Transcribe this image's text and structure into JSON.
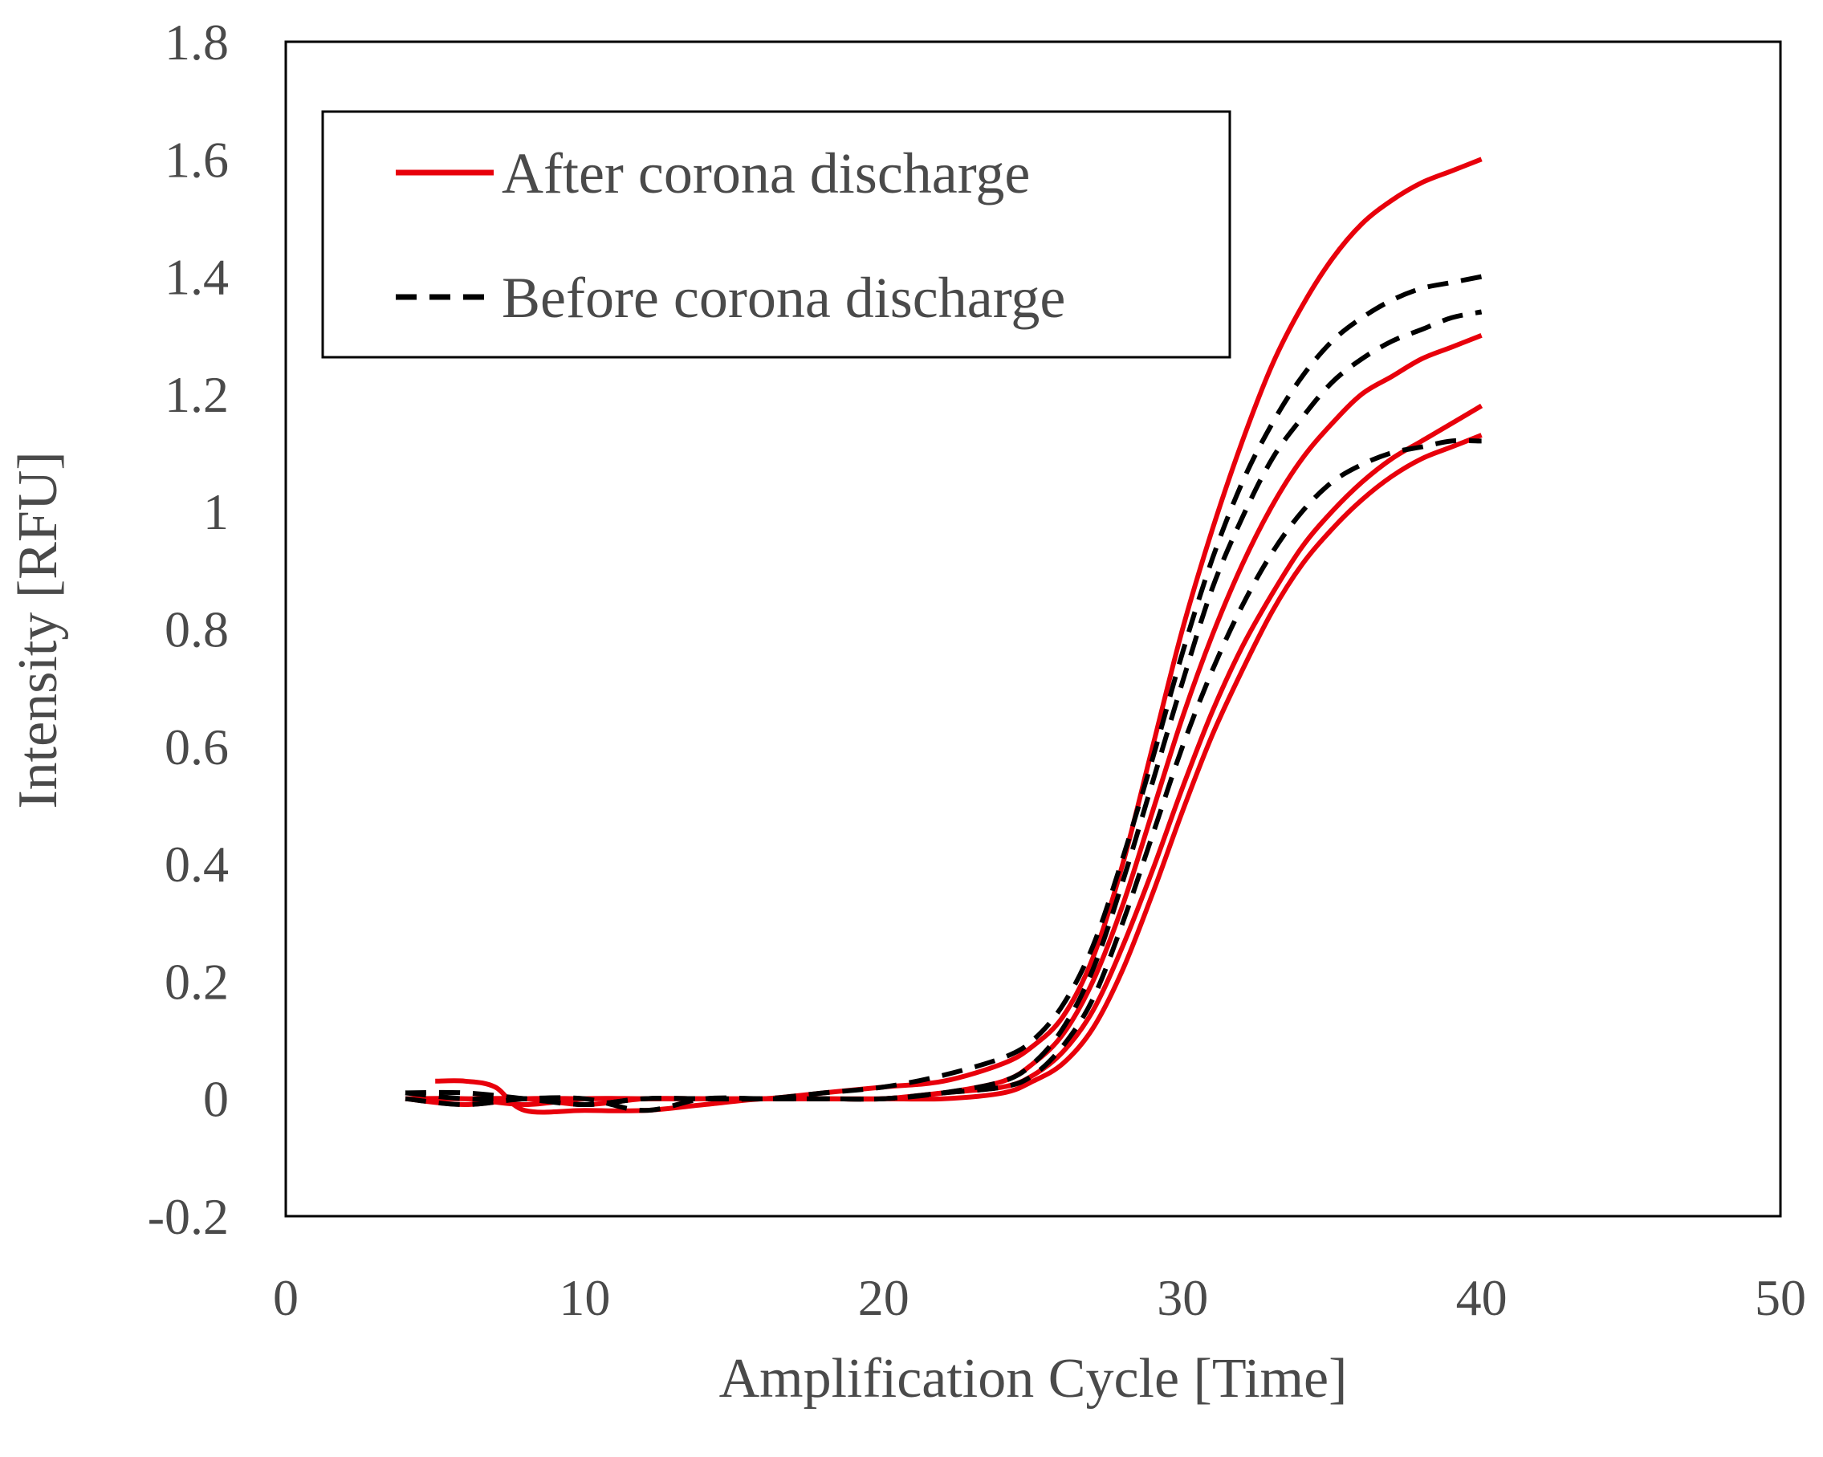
{
  "chart_data": {
    "type": "line",
    "title": "",
    "xlabel": "Amplification Cycle [Time]",
    "ylabel": "Intensity [RFU]",
    "xlim": [
      0,
      50
    ],
    "ylim": [
      -0.2,
      1.8
    ],
    "x_ticks": [
      0,
      10,
      20,
      30,
      40,
      50
    ],
    "y_ticks": [
      -0.2,
      0,
      0.2,
      0.4,
      0.6,
      0.8,
      1,
      1.2,
      1.4,
      1.6,
      1.8
    ],
    "x_tick_labels": [
      "0",
      "10",
      "20",
      "30",
      "40",
      "50"
    ],
    "y_tick_labels": [
      "-0.2",
      "0",
      "0.2",
      "0.4",
      "0.6",
      "0.8",
      "1",
      "1.2",
      "1.4",
      "1.6",
      "1.8"
    ],
    "grid": false,
    "legend_position": "top-left",
    "legend": [
      {
        "label": "After corona discharge",
        "color": "#e8000b",
        "style": "solid"
      },
      {
        "label": "Before corona discharge",
        "color": "#000000",
        "style": "dashed"
      }
    ],
    "series": [
      {
        "name": "After corona discharge",
        "group": "after",
        "color": "#e8000b",
        "style": "solid",
        "x": [
          4,
          6,
          8,
          10,
          12,
          14,
          16,
          18,
          20,
          22,
          24,
          25,
          26,
          27,
          28,
          29,
          30,
          31,
          32,
          33,
          34,
          35,
          36,
          37,
          38,
          39,
          40
        ],
        "y": [
          0.0,
          -0.01,
          0.0,
          0.0,
          0.0,
          0.0,
          0.0,
          0.01,
          0.02,
          0.03,
          0.06,
          0.09,
          0.14,
          0.24,
          0.4,
          0.6,
          0.8,
          0.97,
          1.12,
          1.25,
          1.35,
          1.43,
          1.49,
          1.53,
          1.56,
          1.58,
          1.6
        ]
      },
      {
        "name": "After corona discharge",
        "group": "after",
        "color": "#e8000b",
        "style": "solid",
        "x": [
          4,
          6,
          8,
          10,
          12,
          14,
          16,
          18,
          20,
          22,
          24,
          25,
          26,
          27,
          28,
          29,
          30,
          31,
          32,
          33,
          34,
          35,
          36,
          37,
          38,
          39,
          40
        ],
        "y": [
          0.0,
          0.0,
          -0.01,
          0.0,
          0.0,
          0.0,
          0.0,
          0.0,
          0.0,
          0.01,
          0.03,
          0.06,
          0.11,
          0.2,
          0.33,
          0.49,
          0.65,
          0.79,
          0.91,
          1.01,
          1.09,
          1.15,
          1.2,
          1.23,
          1.26,
          1.28,
          1.3
        ]
      },
      {
        "name": "After corona discharge",
        "group": "after",
        "color": "#e8000b",
        "style": "solid",
        "x": [
          5,
          6,
          7,
          8,
          10,
          12,
          14,
          16,
          18,
          20,
          22,
          24,
          25,
          26,
          27,
          28,
          29,
          30,
          31,
          32,
          33,
          34,
          35,
          36,
          37,
          38,
          39,
          40
        ],
        "y": [
          0.03,
          0.03,
          0.02,
          -0.02,
          -0.02,
          -0.02,
          -0.01,
          0.0,
          0.0,
          0.0,
          0.01,
          0.02,
          0.04,
          0.08,
          0.15,
          0.26,
          0.39,
          0.53,
          0.66,
          0.77,
          0.86,
          0.94,
          1.0,
          1.05,
          1.09,
          1.12,
          1.15,
          1.18
        ]
      },
      {
        "name": "After corona discharge",
        "group": "after",
        "color": "#e8000b",
        "style": "solid",
        "x": [
          4,
          6,
          8,
          10,
          12,
          14,
          16,
          18,
          20,
          22,
          24,
          25,
          26,
          27,
          28,
          29,
          30,
          31,
          32,
          33,
          34,
          35,
          36,
          37,
          38,
          39,
          40
        ],
        "y": [
          0.0,
          0.0,
          0.0,
          -0.01,
          0.0,
          0.0,
          0.0,
          0.0,
          0.0,
          0.0,
          0.01,
          0.03,
          0.06,
          0.12,
          0.22,
          0.35,
          0.49,
          0.62,
          0.73,
          0.83,
          0.91,
          0.97,
          1.02,
          1.06,
          1.09,
          1.11,
          1.13
        ]
      },
      {
        "name": "Before corona discharge",
        "group": "before",
        "color": "#000000",
        "style": "dashed",
        "x": [
          4,
          6,
          8,
          10,
          12,
          14,
          16,
          18,
          20,
          22,
          24,
          25,
          26,
          27,
          28,
          29,
          30,
          31,
          32,
          33,
          34,
          35,
          36,
          37,
          38,
          39,
          40
        ],
        "y": [
          0.01,
          0.01,
          0.0,
          -0.01,
          0.0,
          0.0,
          0.0,
          0.01,
          0.02,
          0.04,
          0.07,
          0.1,
          0.16,
          0.26,
          0.41,
          0.58,
          0.76,
          0.92,
          1.05,
          1.15,
          1.23,
          1.29,
          1.33,
          1.36,
          1.38,
          1.39,
          1.4
        ]
      },
      {
        "name": "Before corona discharge",
        "group": "before",
        "color": "#000000",
        "style": "dashed",
        "x": [
          4,
          6,
          8,
          10,
          12,
          14,
          16,
          18,
          20,
          22,
          24,
          25,
          26,
          27,
          28,
          29,
          30,
          31,
          32,
          33,
          34,
          35,
          36,
          37,
          38,
          39,
          40
        ],
        "y": [
          0.0,
          -0.01,
          0.0,
          0.0,
          -0.02,
          0.0,
          0.0,
          0.0,
          0.0,
          0.01,
          0.03,
          0.06,
          0.12,
          0.22,
          0.37,
          0.54,
          0.71,
          0.87,
          0.99,
          1.09,
          1.16,
          1.22,
          1.26,
          1.29,
          1.31,
          1.33,
          1.34
        ]
      },
      {
        "name": "Before corona discharge",
        "group": "before",
        "color": "#000000",
        "style": "dashed",
        "x": [
          4,
          6,
          8,
          10,
          12,
          14,
          16,
          18,
          20,
          22,
          24,
          25,
          26,
          27,
          28,
          29,
          30,
          31,
          32,
          33,
          34,
          35,
          36,
          37,
          38,
          39,
          40
        ],
        "y": [
          0.01,
          0.0,
          0.0,
          -0.01,
          0.0,
          0.0,
          0.0,
          0.0,
          0.0,
          0.01,
          0.02,
          0.04,
          0.09,
          0.17,
          0.3,
          0.45,
          0.6,
          0.73,
          0.84,
          0.93,
          1.0,
          1.05,
          1.08,
          1.1,
          1.11,
          1.12,
          1.12
        ]
      }
    ]
  }
}
